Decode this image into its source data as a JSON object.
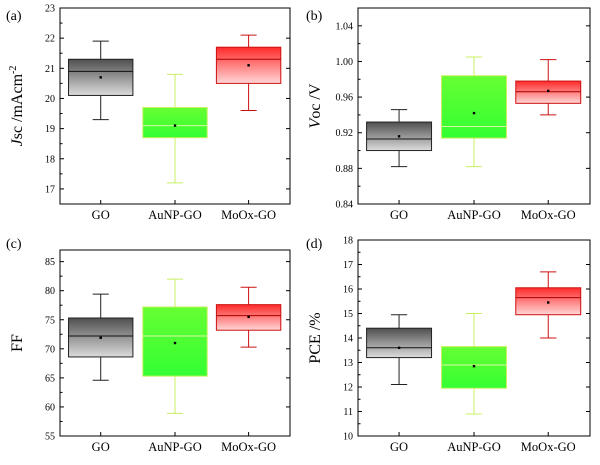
{
  "panels": [
    {
      "label": "(a)",
      "ylabel_parts": [
        {
          "text": "J",
          "italic": true
        },
        {
          "text": "sc /mAcm",
          "italic": false
        },
        {
          "text": "-2",
          "italic": false,
          "sup": true
        }
      ],
      "ylim": [
        16.5,
        23
      ],
      "yticks": [
        17,
        18,
        19,
        20,
        21,
        22,
        23
      ],
      "categories": [
        "GO",
        "AuNP-GO",
        "MoOx-GO"
      ],
      "boxes": [
        {
          "min": 19.3,
          "q1": 20.1,
          "median": 20.9,
          "q3": 21.3,
          "max": 21.9,
          "mean": 20.7
        },
        {
          "min": 17.2,
          "q1": 18.7,
          "median": 19.1,
          "q3": 19.7,
          "max": 20.8,
          "mean": 19.1
        },
        {
          "min": 19.6,
          "q1": 20.5,
          "median": 21.3,
          "q3": 21.7,
          "max": 22.1,
          "mean": 21.1
        }
      ]
    },
    {
      "label": "(b)",
      "ylabel_parts": [
        {
          "text": "V",
          "italic": true
        },
        {
          "text": "oc /V",
          "italic": false
        }
      ],
      "ylim": [
        0.84,
        1.06
      ],
      "yticks": [
        "0.84",
        "0.88",
        "0.92",
        "0.96",
        "1.00",
        "1.04"
      ],
      "categories": [
        "GO",
        "AuNP-GO",
        "MoOx-GO"
      ],
      "boxes": [
        {
          "min": 0.882,
          "q1": 0.9,
          "median": 0.913,
          "q3": 0.932,
          "max": 0.946,
          "mean": 0.916
        },
        {
          "min": 0.882,
          "q1": 0.914,
          "median": 0.927,
          "q3": 0.984,
          "max": 1.005,
          "mean": 0.942
        },
        {
          "min": 0.94,
          "q1": 0.953,
          "median": 0.966,
          "q3": 0.978,
          "max": 1.002,
          "mean": 0.967
        }
      ]
    },
    {
      "label": "(c)",
      "ylabel_parts": [
        {
          "text": "FF",
          "italic": false
        }
      ],
      "ylim": [
        55,
        87
      ],
      "yticks": [
        55,
        60,
        65,
        70,
        75,
        80,
        85
      ],
      "categories": [
        "GO",
        "AuNP-GO",
        "MoOx-GO"
      ],
      "boxes": [
        {
          "min": 64.6,
          "q1": 68.6,
          "median": 72.2,
          "q3": 75.3,
          "max": 79.4,
          "mean": 71.9
        },
        {
          "min": 58.9,
          "q1": 65.3,
          "median": 72.2,
          "q3": 77.2,
          "max": 82.0,
          "mean": 71.0
        },
        {
          "min": 70.3,
          "q1": 73.2,
          "median": 75.7,
          "q3": 77.6,
          "max": 80.6,
          "mean": 75.5
        }
      ]
    },
    {
      "label": "(d)",
      "ylabel_parts": [
        {
          "text": "PCE /%",
          "italic": false
        }
      ],
      "ylim": [
        10,
        18
      ],
      "yticks": [
        10,
        11,
        12,
        13,
        14,
        15,
        16,
        17,
        18
      ],
      "categories": [
        "GO",
        "AuNP-GO",
        "MoOx-GO"
      ],
      "boxes": [
        {
          "min": 12.1,
          "q1": 13.2,
          "median": 13.6,
          "q3": 14.4,
          "max": 14.95,
          "mean": 13.6
        },
        {
          "min": 10.9,
          "q1": 11.95,
          "median": 12.9,
          "q3": 13.65,
          "max": 15.0,
          "mean": 12.85
        },
        {
          "min": 14.0,
          "q1": 14.95,
          "median": 15.65,
          "q3": 16.05,
          "max": 16.7,
          "mean": 15.45
        }
      ]
    }
  ],
  "series_colors": [
    {
      "top": "#4f4f4f",
      "bottom": "#dcdcdc",
      "whisker": "#222222",
      "median": "#111111"
    },
    {
      "top": "#66ff33",
      "bottom": "#33ff33",
      "whisker": "#c8f060",
      "median": "#d9f7a0"
    },
    {
      "top": "#ff2a2a",
      "bottom": "#ffd6d6",
      "whisker": "#cc1111",
      "median": "#aa0000"
    }
  ],
  "chart_data": [
    {
      "type": "box",
      "title": "(a)",
      "ylabel": "Jsc /mAcm-2",
      "categories": [
        "GO",
        "AuNP-GO",
        "MoOx-GO"
      ],
      "ylim": [
        16.5,
        23
      ],
      "series": [
        {
          "name": "GO",
          "min": 19.3,
          "q1": 20.1,
          "median": 20.9,
          "q3": 21.3,
          "max": 21.9,
          "mean": 20.7
        },
        {
          "name": "AuNP-GO",
          "min": 17.2,
          "q1": 18.7,
          "median": 19.1,
          "q3": 19.7,
          "max": 20.8,
          "mean": 19.1
        },
        {
          "name": "MoOx-GO",
          "min": 19.6,
          "q1": 20.5,
          "median": 21.3,
          "q3": 21.7,
          "max": 22.1,
          "mean": 21.1
        }
      ]
    },
    {
      "type": "box",
      "title": "(b)",
      "ylabel": "Voc /V",
      "categories": [
        "GO",
        "AuNP-GO",
        "MoOx-GO"
      ],
      "ylim": [
        0.84,
        1.06
      ],
      "series": [
        {
          "name": "GO",
          "min": 0.882,
          "q1": 0.9,
          "median": 0.913,
          "q3": 0.932,
          "max": 0.946,
          "mean": 0.916
        },
        {
          "name": "AuNP-GO",
          "min": 0.882,
          "q1": 0.914,
          "median": 0.927,
          "q3": 0.984,
          "max": 1.005,
          "mean": 0.942
        },
        {
          "name": "MoOx-GO",
          "min": 0.94,
          "q1": 0.953,
          "median": 0.966,
          "q3": 0.978,
          "max": 1.002,
          "mean": 0.967
        }
      ]
    },
    {
      "type": "box",
      "title": "(c)",
      "ylabel": "FF",
      "categories": [
        "GO",
        "AuNP-GO",
        "MoOx-GO"
      ],
      "ylim": [
        55,
        87
      ],
      "series": [
        {
          "name": "GO",
          "min": 64.6,
          "q1": 68.6,
          "median": 72.2,
          "q3": 75.3,
          "max": 79.4,
          "mean": 71.9
        },
        {
          "name": "AuNP-GO",
          "min": 58.9,
          "q1": 65.3,
          "median": 72.2,
          "q3": 77.2,
          "max": 82.0,
          "mean": 71.0
        },
        {
          "name": "MoOx-GO",
          "min": 70.3,
          "q1": 73.2,
          "median": 75.7,
          "q3": 77.6,
          "max": 80.6,
          "mean": 75.5
        }
      ]
    },
    {
      "type": "box",
      "title": "(d)",
      "ylabel": "PCE /%",
      "categories": [
        "GO",
        "AuNP-GO",
        "MoOx-GO"
      ],
      "ylim": [
        10,
        18
      ],
      "series": [
        {
          "name": "GO",
          "min": 12.1,
          "q1": 13.2,
          "median": 13.6,
          "q3": 14.4,
          "max": 14.95,
          "mean": 13.6
        },
        {
          "name": "AuNP-GO",
          "min": 10.9,
          "q1": 11.95,
          "median": 12.9,
          "q3": 13.65,
          "max": 15.0,
          "mean": 12.85
        },
        {
          "name": "MoOx-GO",
          "min": 14.0,
          "q1": 14.95,
          "median": 15.65,
          "q3": 16.05,
          "max": 16.7,
          "mean": 15.45
        }
      ]
    }
  ]
}
